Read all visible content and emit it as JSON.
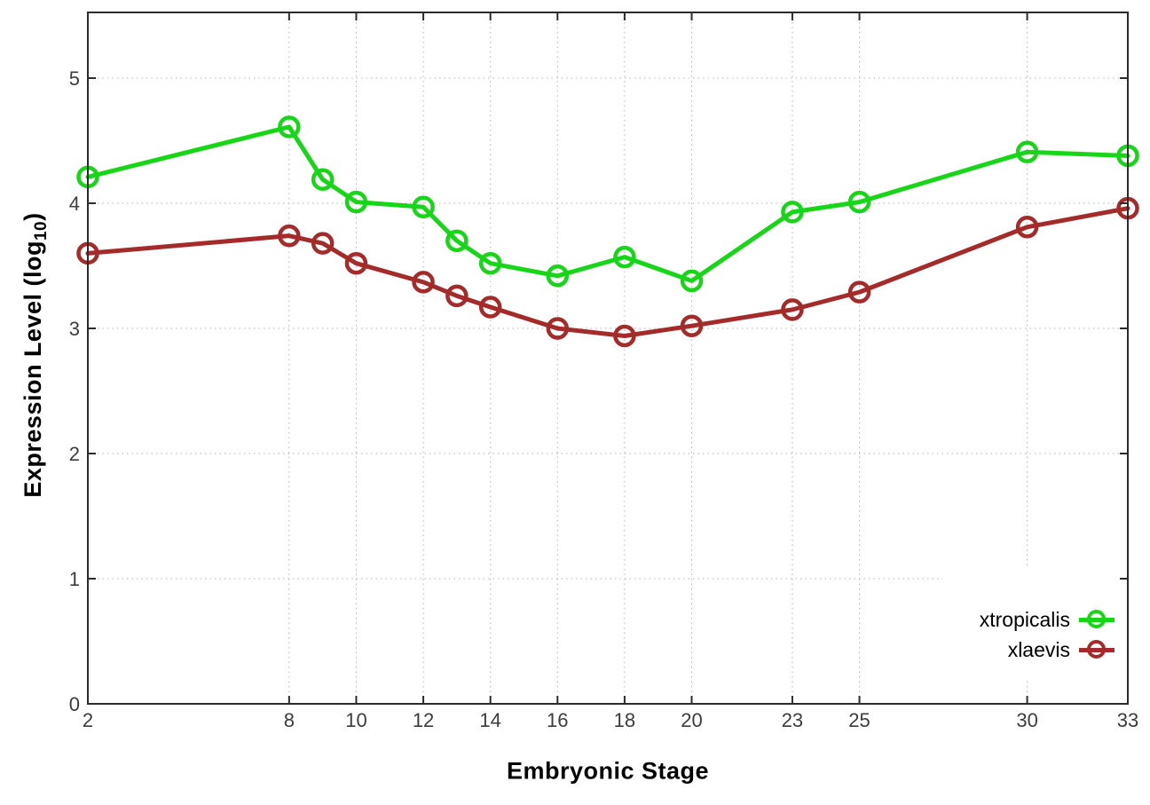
{
  "figure": {
    "background": "#ffffff",
    "border_color": "#2b2b2b",
    "grid_color": "#b3b3b3",
    "tick_label_color": "#3c3c3c"
  },
  "axes": {
    "x": {
      "label": "Embryonic Stage"
    },
    "y": {
      "label_pre": "Expression Level (log",
      "label_sub": "10",
      "label_post": ")"
    }
  },
  "chart_data": {
    "type": "line",
    "title": "",
    "xlabel": "Embryonic Stage",
    "ylabel": "Expression Level (log10)",
    "x": [
      2,
      8,
      9,
      10,
      12,
      13,
      14,
      16,
      18,
      20,
      23,
      25,
      30,
      33
    ],
    "series": [
      {
        "name": "xtropicalis",
        "color": "#17d517",
        "values": [
          4.21,
          4.61,
          4.19,
          4.01,
          3.97,
          3.7,
          3.52,
          3.42,
          3.57,
          3.38,
          3.93,
          4.01,
          4.41,
          4.38
        ]
      },
      {
        "name": "xlaevis",
        "color": "#a52a2a",
        "values": [
          3.6,
          3.74,
          3.68,
          3.52,
          3.37,
          3.26,
          3.17,
          3.0,
          2.94,
          3.02,
          3.15,
          3.29,
          3.81,
          3.96
        ]
      }
    ],
    "xlim": [
      2,
      33
    ],
    "ylim": [
      0,
      5.525
    ],
    "xticks": [
      2,
      8,
      10,
      12,
      14,
      16,
      18,
      20,
      23,
      25,
      30,
      33
    ],
    "yticks": [
      0,
      1,
      2,
      3,
      4,
      5
    ],
    "grid": true,
    "grid_style": "dotted",
    "marker": "open-circle",
    "legend_position": "inside-bottom-right"
  }
}
